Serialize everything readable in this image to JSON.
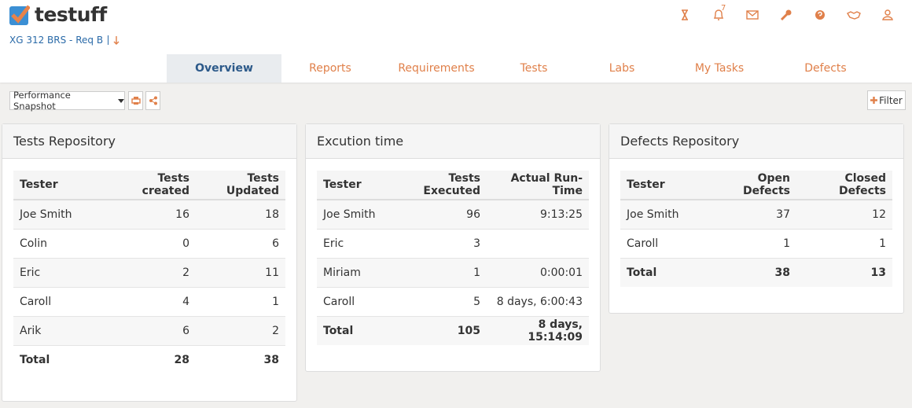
{
  "header": {
    "logo": "testuff",
    "breadcrumb": "XG 312 BRS - Req B",
    "notification_count": "7"
  },
  "tabs": [
    "Overview",
    "Reports",
    "Requirements",
    "Tests",
    "Labs",
    "My Tasks",
    "Defects"
  ],
  "active_tab": 0,
  "toolbar": {
    "snapshot": "Performance Snapshot",
    "filter": "Filter"
  },
  "panels": [
    {
      "title": "Tests Repository",
      "columns": [
        "Tester",
        "Tests created",
        "Tests Updated"
      ],
      "rows": [
        [
          "Joe Smith",
          "16",
          "18"
        ],
        [
          "Colin",
          "0",
          "6"
        ],
        [
          "Eric",
          "2",
          "11"
        ],
        [
          "Caroll",
          "4",
          "1"
        ],
        [
          "Arik",
          "6",
          "2"
        ]
      ],
      "total": [
        "Total",
        "28",
        "38"
      ]
    },
    {
      "title": "Excution time",
      "columns": [
        "Tester",
        "Tests Executed",
        "Actual Run-Time"
      ],
      "rows": [
        [
          "Joe Smith",
          "96",
          "9:13:25"
        ],
        [
          "Eric",
          "3",
          null
        ],
        [
          "Miriam",
          "1",
          "0:00:01"
        ],
        [
          "Caroll",
          "5",
          "8 days, 6:00:43"
        ]
      ],
      "total": [
        "Total",
        "105",
        "8 days, 15:14:09"
      ]
    },
    {
      "title": "Defects Repository",
      "columns": [
        "Tester",
        "Open Defects",
        "Closed Defects"
      ],
      "rows": [
        [
          "Joe Smith",
          "37",
          "12"
        ],
        [
          "Caroll",
          "1",
          "1"
        ]
      ],
      "total": [
        "Total",
        "38",
        "13"
      ]
    }
  ]
}
